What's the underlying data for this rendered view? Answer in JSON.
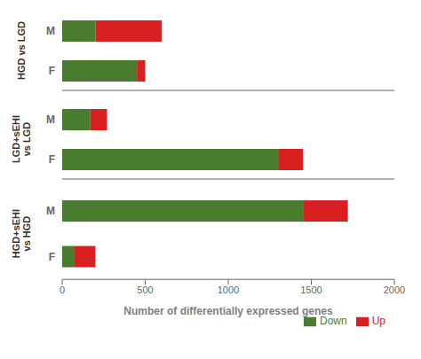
{
  "chart_data": [
    {
      "type": "bar",
      "orientation": "horizontal",
      "stacked": true,
      "ylabel": "HGD vs LGD",
      "categories": [
        "M",
        "F"
      ],
      "series": [
        {
          "name": "Down",
          "color": "#4a7c2f",
          "values": [
            200,
            450
          ]
        },
        {
          "name": "Up",
          "color": "#d92020",
          "values": [
            400,
            50
          ]
        }
      ],
      "xlim": [
        0,
        2000
      ],
      "xticks": [
        0,
        500,
        1000,
        1500,
        2000
      ],
      "tick_labels": "y"
    },
    {
      "type": "bar",
      "orientation": "horizontal",
      "stacked": true,
      "ylabel": "LGD+sEHI\nvs LGD",
      "categories": [
        "M",
        "F"
      ],
      "series": [
        {
          "name": "Down",
          "color": "#4a7c2f",
          "values": [
            170,
            1300
          ]
        },
        {
          "name": "Up",
          "color": "#d92020",
          "values": [
            100,
            150
          ]
        }
      ],
      "xlim": [
        0,
        2000
      ],
      "xticks": [
        0,
        500,
        1000,
        1500,
        2000
      ],
      "tick_labels": "y"
    },
    {
      "type": "bar",
      "orientation": "horizontal",
      "stacked": true,
      "ylabel": "HGD+sEHI\nvs HGD",
      "categories": [
        "M",
        "F"
      ],
      "series": [
        {
          "name": "Down",
          "color": "#4a7c2f",
          "values": [
            1450,
            75
          ]
        },
        {
          "name": "Up",
          "color": "#d92020",
          "values": [
            270,
            125
          ]
        }
      ],
      "xlim": [
        0,
        2000
      ],
      "xticks": [
        0,
        500,
        1000,
        1500,
        2000
      ],
      "xlabel": "Number of differentially expressed genes",
      "legend": "lower right"
    }
  ]
}
